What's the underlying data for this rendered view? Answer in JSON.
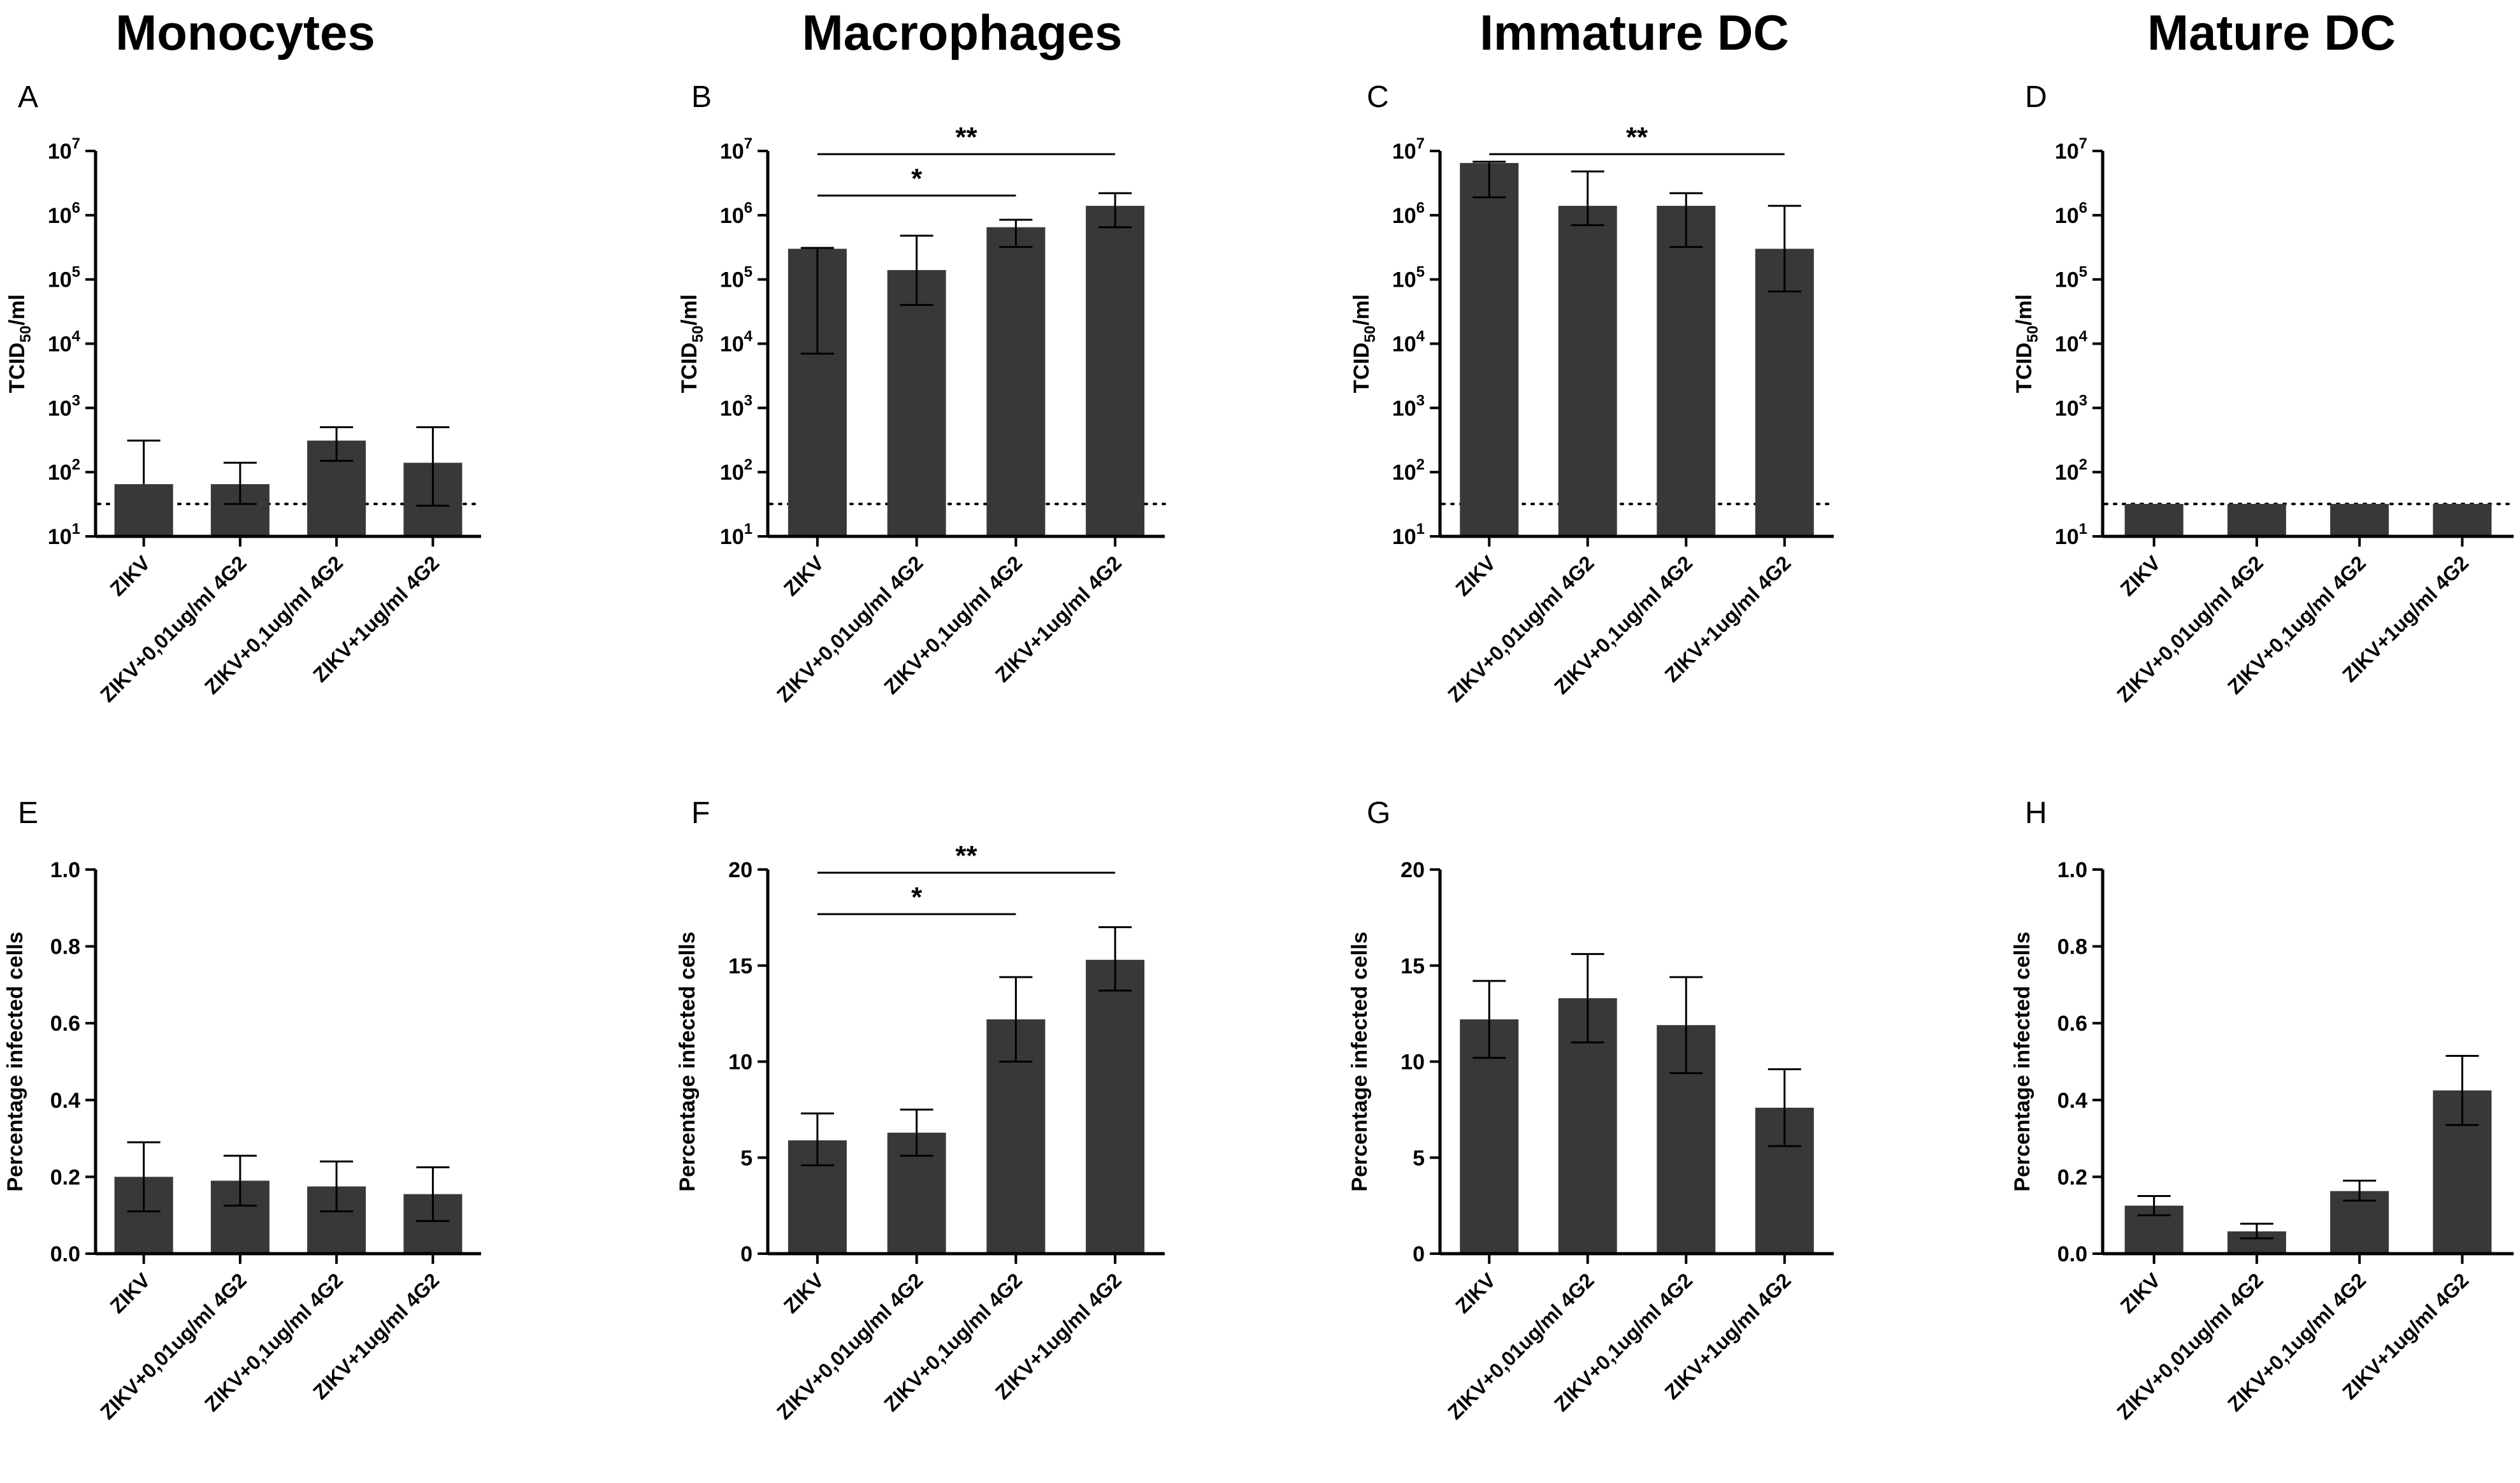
{
  "column_titles": [
    "Monocytes",
    "Macrophages",
    "Immature DC",
    "Mature DC"
  ],
  "colors": {
    "bar": "#383838",
    "axis": "#000000",
    "background": "#ffffff"
  },
  "chart_data": [
    {
      "panel": "A",
      "title": "Monocytes",
      "type": "bar",
      "yscale": "log",
      "ylabel": "TCID50/ml",
      "ylabel_main": "TCID",
      "ylabel_sub": "50",
      "ylabel_suffix": "/ml",
      "ylim": [
        10,
        10000000
      ],
      "yticks": [
        {
          "base": "10",
          "exp": "1"
        },
        {
          "base": "10",
          "exp": "2"
        },
        {
          "base": "10",
          "exp": "3"
        },
        {
          "base": "10",
          "exp": "4"
        },
        {
          "base": "10",
          "exp": "5"
        },
        {
          "base": "10",
          "exp": "6"
        },
        {
          "base": "10",
          "exp": "7"
        }
      ],
      "categories": [
        "ZIKV",
        "ZIKV+0,01ug/ml 4G2",
        "ZIKV+0,1ug/ml 4G2",
        "ZIKV+1ug/ml 4G2"
      ],
      "values": [
        65,
        65,
        310,
        140
      ],
      "error_low": [
        null,
        32,
        150,
        30
      ],
      "error_high": [
        310,
        140,
        500,
        500
      ],
      "detection_limit": 32,
      "significance": []
    },
    {
      "panel": "B",
      "title": "Macrophages",
      "type": "bar",
      "yscale": "log",
      "ylabel": "TCID50/ml",
      "ylabel_main": "TCID",
      "ylabel_sub": "50",
      "ylabel_suffix": "/ml",
      "ylim": [
        10,
        10000000
      ],
      "yticks": [
        {
          "base": "10",
          "exp": "1"
        },
        {
          "base": "10",
          "exp": "2"
        },
        {
          "base": "10",
          "exp": "3"
        },
        {
          "base": "10",
          "exp": "4"
        },
        {
          "base": "10",
          "exp": "5"
        },
        {
          "base": "10",
          "exp": "6"
        },
        {
          "base": "10",
          "exp": "7"
        }
      ],
      "categories": [
        "ZIKV",
        "ZIKV+0,01ug/ml 4G2",
        "ZIKV+0,1ug/ml 4G2",
        "ZIKV+1ug/ml 4G2"
      ],
      "values": [
        300000,
        140000,
        650000,
        1400000
      ],
      "error_low": [
        7000,
        40000,
        320000,
        650000
      ],
      "error_high": [
        310000,
        480000,
        850000,
        2200000
      ],
      "detection_limit": 32,
      "significance": [
        {
          "from": 0,
          "to": 2,
          "label": "*",
          "level": 0
        },
        {
          "from": 0,
          "to": 3,
          "label": "**",
          "level": 1
        }
      ]
    },
    {
      "panel": "C",
      "title": "Immature DC",
      "type": "bar",
      "yscale": "log",
      "ylabel": "TCID50/ml",
      "ylabel_main": "TCID",
      "ylabel_sub": "50",
      "ylabel_suffix": "/ml",
      "ylim": [
        10,
        10000000
      ],
      "yticks": [
        {
          "base": "10",
          "exp": "1"
        },
        {
          "base": "10",
          "exp": "2"
        },
        {
          "base": "10",
          "exp": "3"
        },
        {
          "base": "10",
          "exp": "4"
        },
        {
          "base": "10",
          "exp": "5"
        },
        {
          "base": "10",
          "exp": "6"
        },
        {
          "base": "10",
          "exp": "7"
        }
      ],
      "categories": [
        "ZIKV",
        "ZIKV+0,01ug/ml 4G2",
        "ZIKV+0,1ug/ml 4G2",
        "ZIKV+1ug/ml 4G2"
      ],
      "values": [
        6500000,
        1400000,
        1400000,
        300000
      ],
      "error_low": [
        1900000,
        700000,
        320000,
        65000
      ],
      "error_high": [
        6800000,
        4800000,
        2200000,
        1400000
      ],
      "detection_limit": 32,
      "significance": [
        {
          "from": 0,
          "to": 3,
          "label": "**",
          "level": 1
        }
      ]
    },
    {
      "panel": "D",
      "title": "Mature DC",
      "type": "bar",
      "yscale": "log",
      "ylabel": "TCID50/ml",
      "ylabel_main": "TCID",
      "ylabel_sub": "50",
      "ylabel_suffix": "/ml",
      "ylim": [
        10,
        10000000
      ],
      "yticks": [
        {
          "base": "10",
          "exp": "1"
        },
        {
          "base": "10",
          "exp": "2"
        },
        {
          "base": "10",
          "exp": "3"
        },
        {
          "base": "10",
          "exp": "4"
        },
        {
          "base": "10",
          "exp": "5"
        },
        {
          "base": "10",
          "exp": "6"
        },
        {
          "base": "10",
          "exp": "7"
        }
      ],
      "categories": [
        "ZIKV",
        "ZIKV+0,01ug/ml 4G2",
        "ZIKV+0,1ug/ml 4G2",
        "ZIKV+1ug/ml 4G2"
      ],
      "values": [
        32,
        32,
        32,
        32
      ],
      "error_low": [
        null,
        null,
        null,
        null
      ],
      "error_high": [
        null,
        null,
        null,
        null
      ],
      "detection_limit": 32,
      "significance": []
    },
    {
      "panel": "E",
      "title": "Monocytes",
      "type": "bar",
      "yscale": "linear",
      "ylabel": "Percentage infected cells",
      "ylim": [
        0,
        1.0
      ],
      "yticks": [
        "0.0",
        "0.2",
        "0.4",
        "0.6",
        "0.8",
        "1.0"
      ],
      "categories": [
        "ZIKV",
        "ZIKV+0,01ug/ml 4G2",
        "ZIKV+0,1ug/ml 4G2",
        "ZIKV+1ug/ml 4G2"
      ],
      "values": [
        0.2,
        0.19,
        0.175,
        0.155
      ],
      "error_low": [
        0.11,
        0.125,
        0.11,
        0.085
      ],
      "error_high": [
        0.29,
        0.255,
        0.24,
        0.225
      ],
      "significance": []
    },
    {
      "panel": "F",
      "title": "Macrophages",
      "type": "bar",
      "yscale": "linear",
      "ylabel": "Percentage infected cells",
      "ylim": [
        0,
        20
      ],
      "yticks": [
        "0",
        "5",
        "10",
        "15",
        "20"
      ],
      "categories": [
        "ZIKV",
        "ZIKV+0,01ug/ml 4G2",
        "ZIKV+0,1ug/ml 4G2",
        "ZIKV+1ug/ml 4G2"
      ],
      "values": [
        5.9,
        6.3,
        12.2,
        15.3
      ],
      "error_low": [
        4.6,
        5.1,
        10.0,
        13.7
      ],
      "error_high": [
        7.3,
        7.5,
        14.4,
        17.0
      ],
      "significance": [
        {
          "from": 0,
          "to": 2,
          "label": "*",
          "level": 0
        },
        {
          "from": 0,
          "to": 3,
          "label": "**",
          "level": 1
        }
      ]
    },
    {
      "panel": "G",
      "title": "Immature DC",
      "type": "bar",
      "yscale": "linear",
      "ylabel": "Percentage infected cells",
      "ylim": [
        0,
        20
      ],
      "yticks": [
        "0",
        "5",
        "10",
        "15",
        "20"
      ],
      "categories": [
        "ZIKV",
        "ZIKV+0,01ug/ml 4G2",
        "ZIKV+0,1ug/ml 4G2",
        "ZIKV+1ug/ml 4G2"
      ],
      "values": [
        12.2,
        13.3,
        11.9,
        7.6
      ],
      "error_low": [
        10.2,
        11.0,
        9.4,
        5.6
      ],
      "error_high": [
        14.2,
        15.6,
        14.4,
        9.6
      ],
      "significance": []
    },
    {
      "panel": "H",
      "title": "Mature DC",
      "type": "bar",
      "yscale": "linear",
      "ylabel": "Percentage infected cells",
      "ylim": [
        0,
        1.0
      ],
      "yticks": [
        "0.0",
        "0.2",
        "0.4",
        "0.6",
        "0.8",
        "1.0"
      ],
      "categories": [
        "ZIKV",
        "ZIKV+0,01ug/ml 4G2",
        "ZIKV+0,1ug/ml 4G2",
        "ZIKV+1ug/ml 4G2"
      ],
      "values": [
        0.125,
        0.058,
        0.163,
        0.425
      ],
      "error_low": [
        0.1,
        0.04,
        0.138,
        0.335
      ],
      "error_high": [
        0.15,
        0.078,
        0.19,
        0.515
      ],
      "significance": []
    }
  ]
}
